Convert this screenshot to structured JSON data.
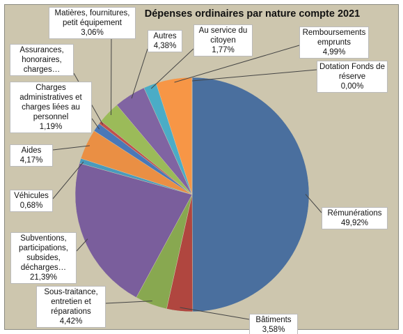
{
  "chart_data": {
    "type": "pie",
    "title": "Dépenses ordinaires par nature compte 2021",
    "categories": [
      "Rémunérations",
      "Bâtiments",
      "Sous-traitance, entretien et réparations",
      "Subventions, participations, subsides, décharges…",
      "Véhicules",
      "Aides",
      "Charges administratives et charges liées au personnel",
      "Assurances, honoraires, charges…",
      "Matières, fournitures, petit équipement",
      "Autres",
      "Au service du citoyen",
      "Remboursements emprunts",
      "Dotation Fonds de réserve"
    ],
    "values": [
      49.92,
      3.58,
      4.42,
      21.39,
      0.68,
      4.17,
      1.19,
      0.45,
      3.06,
      4.38,
      1.77,
      4.99,
      0
    ],
    "value_labels": [
      "49,92%",
      "3,58%",
      "4,42%",
      "21,39%",
      "0,68%",
      "4,17%",
      "1,19%",
      null,
      "3,06%",
      "4,38%",
      "1,77%",
      "4,99%",
      "0,00%"
    ],
    "colors": [
      "#4a6f9e",
      "#b0463f",
      "#88a850",
      "#7a5e9c",
      "#4a9bbd",
      "#ea8f44",
      "#4a78b8",
      "#c0504d",
      "#9bbb59",
      "#8064a2",
      "#4bacc6",
      "#f79646",
      "#4f81bd"
    ]
  }
}
